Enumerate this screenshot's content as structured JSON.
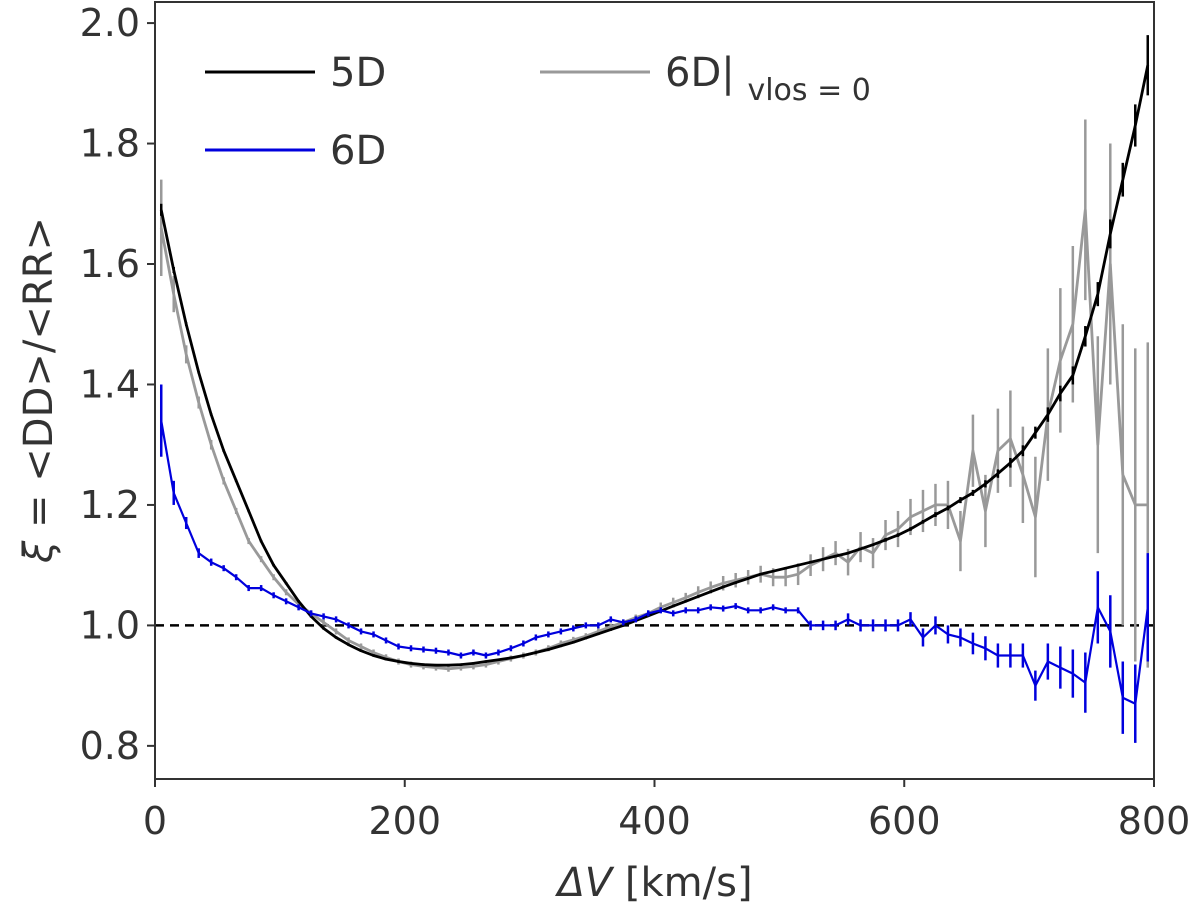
{
  "chart_data": {
    "type": "line",
    "xlabel_math": "ΔV",
    "xlabel_units": " [km/s]",
    "ylabel_math": "ξ",
    "ylabel_rest": " = <DD>/<RR>",
    "xlim": [
      0,
      800
    ],
    "ylim": [
      0.745,
      2.035
    ],
    "xticks": [
      0,
      200,
      400,
      600,
      800
    ],
    "yticks": [
      0.8,
      1.0,
      1.2,
      1.4,
      1.6,
      1.8,
      2.0
    ],
    "xtick_labels": [
      "0",
      "200",
      "400",
      "600",
      "800"
    ],
    "ytick_labels": [
      "0.8",
      "1.0",
      "1.2",
      "1.4",
      "1.6",
      "1.8",
      "2.0"
    ],
    "grid": false,
    "legend_placement": "top-left",
    "reference_line": {
      "y": 1.0,
      "style": "dashed",
      "color": "#000000"
    },
    "series": [
      {
        "name": "5D",
        "color": "#000000",
        "x": [
          5,
          15,
          25,
          35,
          45,
          55,
          65,
          75,
          85,
          95,
          105,
          115,
          125,
          135,
          145,
          155,
          165,
          175,
          185,
          195,
          205,
          215,
          225,
          235,
          245,
          255,
          265,
          275,
          285,
          295,
          305,
          315,
          325,
          335,
          345,
          355,
          365,
          375,
          385,
          395,
          405,
          415,
          425,
          435,
          445,
          455,
          465,
          475,
          485,
          495,
          505,
          515,
          525,
          535,
          545,
          555,
          565,
          575,
          585,
          595,
          605,
          615,
          625,
          635,
          645,
          655,
          665,
          675,
          685,
          695,
          705,
          715,
          725,
          735,
          745,
          755,
          765,
          775,
          785,
          795
        ],
        "y": [
          1.69,
          1.59,
          1.5,
          1.42,
          1.35,
          1.29,
          1.24,
          1.19,
          1.14,
          1.1,
          1.07,
          1.04,
          1.015,
          0.995,
          0.98,
          0.968,
          0.958,
          0.95,
          0.944,
          0.94,
          0.937,
          0.935,
          0.934,
          0.934,
          0.935,
          0.937,
          0.94,
          0.943,
          0.946,
          0.95,
          0.955,
          0.96,
          0.966,
          0.972,
          0.979,
          0.986,
          0.993,
          1.0,
          1.008,
          1.016,
          1.024,
          1.032,
          1.04,
          1.048,
          1.056,
          1.064,
          1.071,
          1.078,
          1.085,
          1.09,
          1.095,
          1.1,
          1.105,
          1.11,
          1.115,
          1.12,
          1.127,
          1.134,
          1.142,
          1.15,
          1.16,
          1.172,
          1.184,
          1.195,
          1.208,
          1.22,
          1.235,
          1.252,
          1.27,
          1.29,
          1.32,
          1.35,
          1.385,
          1.415,
          1.48,
          1.55,
          1.65,
          1.74,
          1.83,
          1.93
        ],
        "yerr": [
          0.01,
          0.005,
          0.003,
          0.002,
          0.002,
          0.002,
          0.002,
          0.002,
          0.002,
          0.002,
          0.002,
          0.002,
          0.002,
          0.002,
          0.002,
          0.002,
          0.002,
          0.002,
          0.002,
          0.002,
          0.002,
          0.002,
          0.002,
          0.002,
          0.002,
          0.002,
          0.002,
          0.002,
          0.002,
          0.002,
          0.002,
          0.002,
          0.002,
          0.002,
          0.002,
          0.002,
          0.002,
          0.002,
          0.002,
          0.002,
          0.002,
          0.002,
          0.002,
          0.002,
          0.002,
          0.002,
          0.002,
          0.002,
          0.002,
          0.002,
          0.002,
          0.002,
          0.002,
          0.002,
          0.002,
          0.002,
          0.002,
          0.002,
          0.003,
          0.003,
          0.003,
          0.003,
          0.004,
          0.004,
          0.005,
          0.005,
          0.006,
          0.007,
          0.008,
          0.009,
          0.01,
          0.012,
          0.013,
          0.015,
          0.017,
          0.02,
          0.024,
          0.028,
          0.035,
          0.05
        ]
      },
      {
        "name": "6D",
        "color": "#0000dd",
        "x": [
          5,
          15,
          25,
          35,
          45,
          55,
          65,
          75,
          85,
          95,
          105,
          115,
          125,
          135,
          145,
          155,
          165,
          175,
          185,
          195,
          205,
          215,
          225,
          235,
          245,
          255,
          265,
          275,
          285,
          295,
          305,
          315,
          325,
          335,
          345,
          355,
          365,
          375,
          385,
          395,
          405,
          415,
          425,
          435,
          445,
          455,
          465,
          475,
          485,
          495,
          505,
          515,
          525,
          535,
          545,
          555,
          565,
          575,
          585,
          595,
          605,
          615,
          625,
          635,
          645,
          655,
          665,
          675,
          685,
          695,
          705,
          715,
          725,
          735,
          745,
          755,
          765,
          775,
          785,
          795
        ],
        "y": [
          1.34,
          1.22,
          1.17,
          1.12,
          1.105,
          1.095,
          1.08,
          1.062,
          1.062,
          1.05,
          1.04,
          1.03,
          1.02,
          1.015,
          1.01,
          1.0,
          0.99,
          0.985,
          0.975,
          0.965,
          0.962,
          0.96,
          0.958,
          0.955,
          0.95,
          0.955,
          0.95,
          0.955,
          0.962,
          0.97,
          0.98,
          0.985,
          0.99,
          0.995,
          1.0,
          1.0,
          1.01,
          1.005,
          1.01,
          1.02,
          1.025,
          1.02,
          1.025,
          1.025,
          1.03,
          1.028,
          1.032,
          1.025,
          1.025,
          1.03,
          1.025,
          1.025,
          1.0,
          1.0,
          1.0,
          1.01,
          1.0,
          1.0,
          1.0,
          1.0,
          1.01,
          0.98,
          1.0,
          0.985,
          0.98,
          0.97,
          0.962,
          0.95,
          0.95,
          0.95,
          0.9,
          0.94,
          0.93,
          0.92,
          0.905,
          1.03,
          0.99,
          0.88,
          0.87,
          1.03
        ],
        "yerr": [
          0.06,
          0.02,
          0.01,
          0.008,
          0.006,
          0.005,
          0.005,
          0.005,
          0.005,
          0.005,
          0.005,
          0.005,
          0.005,
          0.005,
          0.005,
          0.005,
          0.005,
          0.005,
          0.005,
          0.005,
          0.005,
          0.005,
          0.005,
          0.005,
          0.005,
          0.005,
          0.005,
          0.005,
          0.005,
          0.005,
          0.005,
          0.005,
          0.005,
          0.005,
          0.005,
          0.005,
          0.005,
          0.005,
          0.005,
          0.005,
          0.005,
          0.005,
          0.005,
          0.005,
          0.005,
          0.005,
          0.005,
          0.005,
          0.005,
          0.005,
          0.005,
          0.005,
          0.008,
          0.008,
          0.008,
          0.01,
          0.01,
          0.01,
          0.01,
          0.01,
          0.012,
          0.015,
          0.015,
          0.015,
          0.015,
          0.018,
          0.02,
          0.02,
          0.02,
          0.02,
          0.025,
          0.03,
          0.035,
          0.04,
          0.05,
          0.06,
          0.06,
          0.06,
          0.065,
          0.09
        ]
      },
      {
        "name": "6D|vlos = 0",
        "name_main": "6D|",
        "name_sub": "vlos = 0",
        "color": "#999999",
        "x": [
          5,
          15,
          25,
          35,
          45,
          55,
          65,
          75,
          85,
          95,
          105,
          115,
          125,
          135,
          145,
          155,
          165,
          175,
          185,
          195,
          205,
          215,
          225,
          235,
          245,
          255,
          265,
          275,
          285,
          295,
          305,
          315,
          325,
          335,
          345,
          355,
          365,
          375,
          385,
          395,
          405,
          415,
          425,
          435,
          445,
          455,
          465,
          475,
          485,
          495,
          505,
          515,
          525,
          535,
          545,
          555,
          565,
          575,
          585,
          595,
          605,
          615,
          625,
          635,
          645,
          655,
          665,
          675,
          685,
          695,
          705,
          715,
          725,
          735,
          745,
          755,
          765,
          775,
          785,
          795
        ],
        "y": [
          1.66,
          1.55,
          1.45,
          1.37,
          1.3,
          1.24,
          1.19,
          1.14,
          1.11,
          1.08,
          1.055,
          1.035,
          1.02,
          1.005,
          0.99,
          0.975,
          0.965,
          0.955,
          0.947,
          0.94,
          0.935,
          0.932,
          0.93,
          0.928,
          0.93,
          0.932,
          0.935,
          0.94,
          0.945,
          0.95,
          0.955,
          0.962,
          0.97,
          0.976,
          0.982,
          0.99,
          0.998,
          1.005,
          1.013,
          1.02,
          1.03,
          1.038,
          1.046,
          1.055,
          1.063,
          1.07,
          1.075,
          1.08,
          1.085,
          1.08,
          1.08,
          1.085,
          1.1,
          1.11,
          1.12,
          1.105,
          1.13,
          1.12,
          1.15,
          1.16,
          1.18,
          1.19,
          1.2,
          1.2,
          1.14,
          1.29,
          1.19,
          1.29,
          1.31,
          1.25,
          1.18,
          1.35,
          1.44,
          1.5,
          1.69,
          1.3,
          1.6,
          1.25,
          1.2,
          1.2
        ],
        "yerr": [
          0.08,
          0.03,
          0.015,
          0.01,
          0.008,
          0.006,
          0.005,
          0.005,
          0.005,
          0.005,
          0.005,
          0.005,
          0.005,
          0.005,
          0.005,
          0.005,
          0.005,
          0.005,
          0.005,
          0.005,
          0.005,
          0.005,
          0.005,
          0.005,
          0.005,
          0.005,
          0.005,
          0.005,
          0.005,
          0.005,
          0.005,
          0.005,
          0.005,
          0.005,
          0.005,
          0.005,
          0.005,
          0.005,
          0.005,
          0.005,
          0.008,
          0.008,
          0.008,
          0.01,
          0.01,
          0.012,
          0.012,
          0.012,
          0.014,
          0.015,
          0.015,
          0.018,
          0.018,
          0.02,
          0.02,
          0.022,
          0.025,
          0.025,
          0.025,
          0.03,
          0.03,
          0.035,
          0.035,
          0.04,
          0.05,
          0.06,
          0.06,
          0.07,
          0.08,
          0.08,
          0.1,
          0.11,
          0.12,
          0.13,
          0.15,
          0.18,
          0.2,
          0.25,
          0.26,
          0.27
        ]
      }
    ]
  }
}
